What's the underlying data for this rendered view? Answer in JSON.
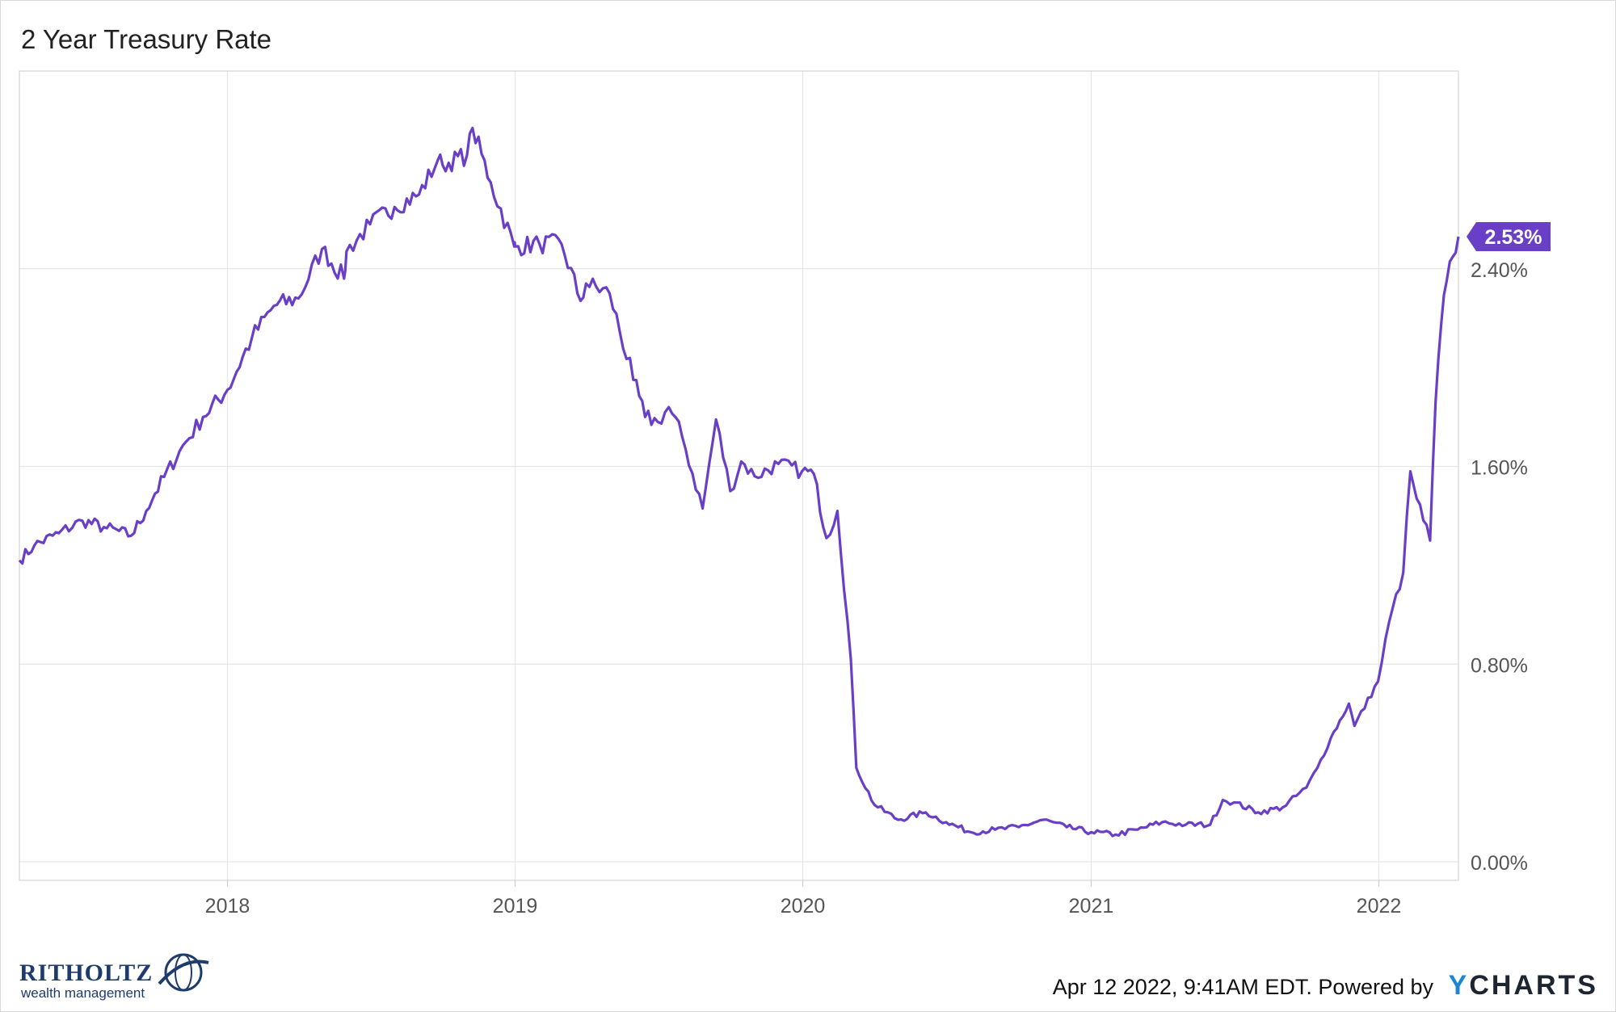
{
  "chart_data": {
    "type": "line",
    "title": "2 Year Treasury Rate",
    "x_ticks": [
      "2018",
      "2019",
      "2020",
      "2021",
      "2022"
    ],
    "y_ticks": [
      "0.00%",
      "0.80%",
      "1.60%",
      "2.40%"
    ],
    "ylim": [
      0,
      3.2
    ],
    "grid": true,
    "last_value_label": "2.53%",
    "series": [
      {
        "color": "#6a3fc8",
        "points": [
          [
            "2017-04-12",
            1.22
          ],
          [
            "2017-05-01",
            1.28
          ],
          [
            "2017-06-01",
            1.33
          ],
          [
            "2017-07-01",
            1.38
          ],
          [
            "2017-08-01",
            1.35
          ],
          [
            "2017-09-01",
            1.32
          ],
          [
            "2017-09-20",
            1.42
          ],
          [
            "2017-10-01",
            1.49
          ],
          [
            "2017-11-01",
            1.66
          ],
          [
            "2017-12-01",
            1.8
          ],
          [
            "2018-01-01",
            1.91
          ],
          [
            "2018-02-01",
            2.12
          ],
          [
            "2018-03-01",
            2.25
          ],
          [
            "2018-04-01",
            2.28
          ],
          [
            "2018-05-01",
            2.48
          ],
          [
            "2018-05-29",
            2.36
          ],
          [
            "2018-06-01",
            2.47
          ],
          [
            "2018-07-01",
            2.58
          ],
          [
            "2018-08-01",
            2.65
          ],
          [
            "2018-09-01",
            2.7
          ],
          [
            "2018-09-25",
            2.84
          ],
          [
            "2018-10-01",
            2.82
          ],
          [
            "2018-11-01",
            2.86
          ],
          [
            "2018-11-08",
            2.97
          ],
          [
            "2018-12-01",
            2.75
          ],
          [
            "2018-12-31",
            2.49
          ],
          [
            "2019-01-01",
            2.49
          ],
          [
            "2019-02-01",
            2.5
          ],
          [
            "2019-03-01",
            2.5
          ],
          [
            "2019-03-25",
            2.27
          ],
          [
            "2019-04-01",
            2.34
          ],
          [
            "2019-05-01",
            2.3
          ],
          [
            "2019-05-31",
            1.95
          ],
          [
            "2019-06-15",
            1.8
          ],
          [
            "2019-07-01",
            1.78
          ],
          [
            "2019-07-15",
            1.84
          ],
          [
            "2019-08-01",
            1.72
          ],
          [
            "2019-08-27",
            1.43
          ],
          [
            "2019-09-13",
            1.79
          ],
          [
            "2019-10-01",
            1.5
          ],
          [
            "2019-10-15",
            1.62
          ],
          [
            "2019-11-01",
            1.56
          ],
          [
            "2019-12-01",
            1.61
          ],
          [
            "2019-12-31",
            1.58
          ],
          [
            "2020-01-15",
            1.57
          ],
          [
            "2020-01-31",
            1.31
          ],
          [
            "2020-02-14",
            1.42
          ],
          [
            "2020-03-02",
            0.82
          ],
          [
            "2020-03-09",
            0.38
          ],
          [
            "2020-04-01",
            0.23
          ],
          [
            "2020-05-01",
            0.17
          ],
          [
            "2020-06-05",
            0.2
          ],
          [
            "2020-07-01",
            0.16
          ],
          [
            "2020-08-01",
            0.12
          ],
          [
            "2020-09-01",
            0.13
          ],
          [
            "2020-10-01",
            0.14
          ],
          [
            "2020-11-01",
            0.17
          ],
          [
            "2020-12-01",
            0.14
          ],
          [
            "2021-01-01",
            0.12
          ],
          [
            "2021-02-01",
            0.11
          ],
          [
            "2021-03-01",
            0.13
          ],
          [
            "2021-04-01",
            0.16
          ],
          [
            "2021-05-01",
            0.15
          ],
          [
            "2021-06-01",
            0.15
          ],
          [
            "2021-06-17",
            0.25
          ],
          [
            "2021-07-01",
            0.24
          ],
          [
            "2021-08-01",
            0.2
          ],
          [
            "2021-09-01",
            0.22
          ],
          [
            "2021-10-01",
            0.3
          ],
          [
            "2021-10-15",
            0.38
          ],
          [
            "2021-11-01",
            0.5
          ],
          [
            "2021-11-24",
            0.64
          ],
          [
            "2021-12-01",
            0.55
          ],
          [
            "2021-12-31",
            0.73
          ],
          [
            "2022-01-14",
            0.97
          ],
          [
            "2022-02-01",
            1.17
          ],
          [
            "2022-02-10",
            1.58
          ],
          [
            "2022-02-18",
            1.47
          ],
          [
            "2022-03-07",
            1.3
          ],
          [
            "2022-03-14",
            1.86
          ],
          [
            "2022-03-21",
            2.17
          ],
          [
            "2022-03-28",
            2.35
          ],
          [
            "2022-04-05",
            2.45
          ],
          [
            "2022-04-12",
            2.53
          ]
        ]
      }
    ]
  },
  "footer": {
    "timestamp": "Apr 12 2022, 9:41AM EDT. Powered by",
    "ycharts_y": "Y",
    "ycharts_rest": "CHARTS"
  },
  "logo": {
    "name": "RITHOLTZ",
    "sub": "wealth management"
  }
}
